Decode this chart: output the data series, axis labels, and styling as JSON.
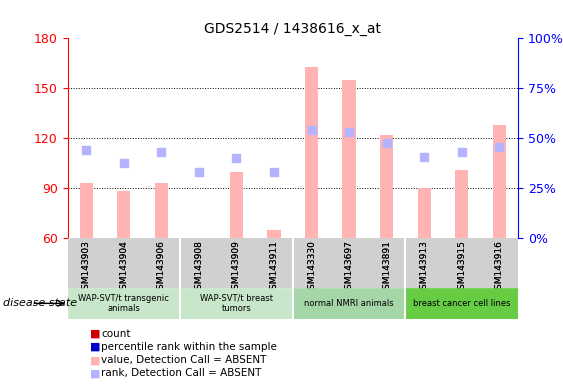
{
  "title": "GDS2514 / 1438616_x_at",
  "samples": [
    "GSM143903",
    "GSM143904",
    "GSM143906",
    "GSM143908",
    "GSM143909",
    "GSM143911",
    "GSM143330",
    "GSM143697",
    "GSM143891",
    "GSM143913",
    "GSM143915",
    "GSM143916"
  ],
  "bar_values_absent": [
    93,
    88,
    93,
    60,
    100,
    65,
    163,
    155,
    122,
    90,
    101,
    128
  ],
  "rank_absent": [
    113,
    105,
    112,
    100,
    108,
    100,
    125,
    124,
    117,
    109,
    112,
    115
  ],
  "ylim_left": [
    60,
    180
  ],
  "ylim_right": [
    0,
    100
  ],
  "yticks_left": [
    60,
    90,
    120,
    150,
    180
  ],
  "yticks_right": [
    0,
    25,
    50,
    75,
    100
  ],
  "ytick_labels_right": [
    "0%",
    "25%",
    "50%",
    "75%",
    "100%"
  ],
  "groups": [
    {
      "label": "WAP-SVT/t transgenic\nanimals",
      "start": 0,
      "end": 3,
      "color": "#c8e6c9"
    },
    {
      "label": "WAP-SVT/t breast\ntumors",
      "start": 3,
      "end": 6,
      "color": "#c8e6c9"
    },
    {
      "label": "normal NMRI animals",
      "start": 6,
      "end": 9,
      "color": "#a5d6a7"
    },
    {
      "label": "breast cancer cell lines",
      "start": 9,
      "end": 12,
      "color": "#69f0ae"
    }
  ],
  "group_colors": [
    "#d4edda",
    "#c3e6cb",
    "#b2dfb4",
    "#66bb6a"
  ],
  "bar_color_absent": "#ffb3b3",
  "rank_color_absent": "#b3b3ff",
  "bar_color": "#cc0000",
  "rank_color": "#0000cc",
  "legend_items": [
    {
      "label": "count",
      "color": "#cc0000",
      "marker": "s"
    },
    {
      "label": "percentile rank within the sample",
      "color": "#0000cc",
      "marker": "s"
    },
    {
      "label": "value, Detection Call = ABSENT",
      "color": "#ffb3b3",
      "marker": "s"
    },
    {
      "label": "rank, Detection Call = ABSENT",
      "color": "#b3b3ff",
      "marker": "s"
    }
  ],
  "disease_state_label": "disease state",
  "group_border_indices": [
    3,
    6,
    9
  ]
}
